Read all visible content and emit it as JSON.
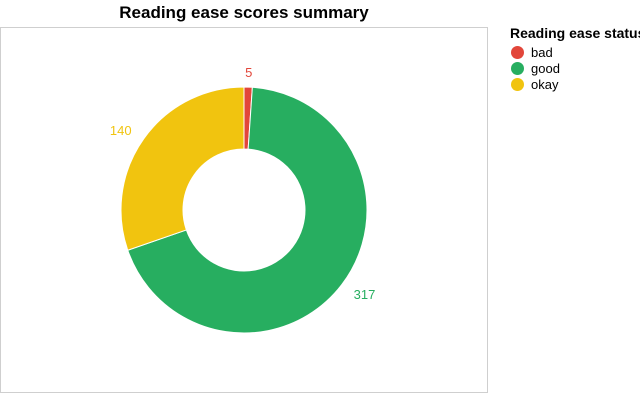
{
  "chart_data": {
    "type": "pie",
    "variant": "donut",
    "title": "Reading ease scores summary",
    "legend_title": "Reading ease status",
    "legend_position": "right",
    "slices": [
      {
        "label": "bad",
        "value": 5,
        "color": "#e2463a"
      },
      {
        "label": "good",
        "value": 317,
        "color": "#27ae60"
      },
      {
        "label": "okay",
        "value": 140,
        "color": "#f1c40f"
      }
    ]
  }
}
